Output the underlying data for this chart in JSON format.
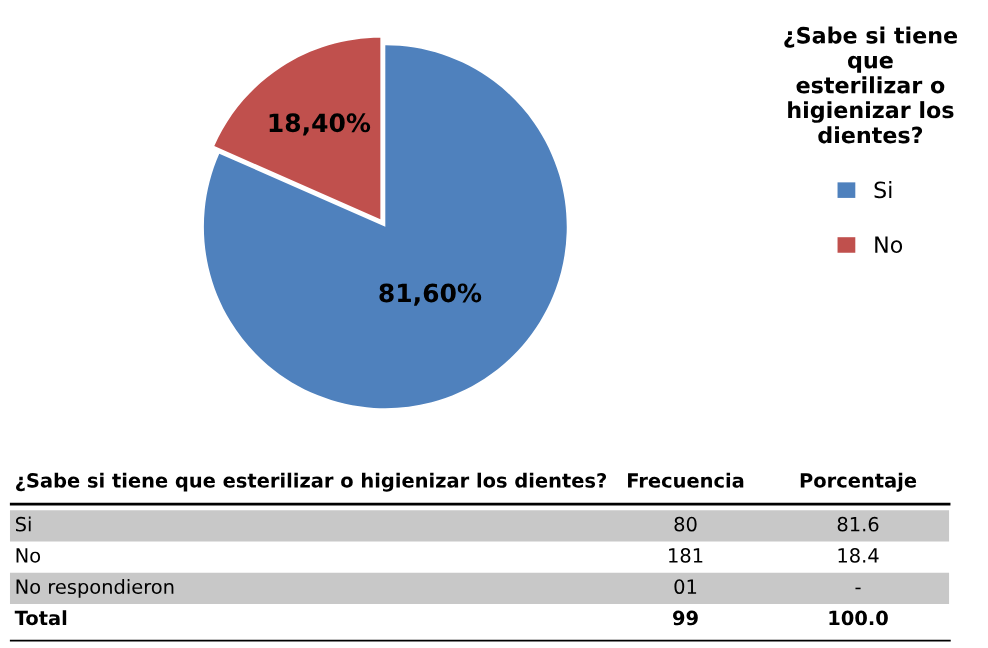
{
  "chart_data": [
    {
      "type": "pie",
      "legend_title": "¿Sabe si tiene que esterilizar o higienizar los dientes?",
      "categories": [
        "Si",
        "No"
      ],
      "values": [
        81.6,
        18.4
      ],
      "colors": [
        "#4f81bd",
        "#c0504d"
      ],
      "value_labels": [
        "81,60%",
        "18,40%"
      ],
      "legend": "right"
    },
    {
      "type": "other",
      "annotations": [
        "¿Sabe si tiene que esterilizar o higienizar los dientes?",
        "Frecuencia",
        "Porcentaje",
        "Si",
        "80",
        "81.6",
        "No",
        "181",
        "18.4",
        "No respondieron",
        "01",
        "-",
        "Total",
        "99",
        "100.0"
      ]
    }
  ]
}
